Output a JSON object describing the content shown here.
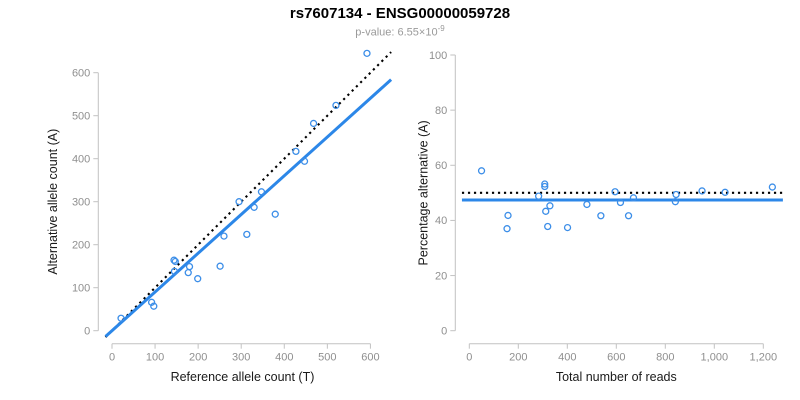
{
  "header": {
    "title": "rs7607134 - ENSG00000059728",
    "subtitle": {
      "text": "p-value: 6.55×10",
      "exponent": "-9"
    }
  },
  "colors": {
    "fit_line_blue": "#2c87e8",
    "point_blue": "#3c8ee8",
    "identity_black": "#000000",
    "axis_line": "#c2c2c2",
    "tick_label": "#8f8f8f",
    "axis_label": "#1a1a1a",
    "title": "#000000",
    "subtitle": "#9a9a9a",
    "background": "#ffffff"
  },
  "chart_data": [
    {
      "id": "allele-count-scatter",
      "type": "scatter",
      "xlabel": "Reference allele count (T)",
      "ylabel": "Alternative allele count (A)",
      "xlim": [
        0,
        600
      ],
      "ylim": [
        0,
        600
      ],
      "xticks": [
        0,
        100,
        200,
        300,
        400,
        500,
        600
      ],
      "xtick_labels": [
        "0",
        "100",
        "200",
        "300",
        "400",
        "500",
        "600"
      ],
      "yticks": [
        0,
        100,
        200,
        300,
        400,
        500,
        600
      ],
      "ytick_labels": [
        "0",
        "100",
        "200",
        "300",
        "400",
        "500",
        "600"
      ],
      "grid": false,
      "points": [
        [
          21,
          29
        ],
        [
          92,
          66
        ],
        [
          97,
          57
        ],
        [
          144,
          164
        ],
        [
          147,
          161
        ],
        [
          145,
          138
        ],
        [
          177,
          135
        ],
        [
          180,
          149
        ],
        [
          199,
          121
        ],
        [
          251,
          150
        ],
        [
          260,
          220
        ],
        [
          313,
          224
        ],
        [
          295,
          300
        ],
        [
          330,
          287
        ],
        [
          347,
          323
        ],
        [
          379,
          271
        ],
        [
          427,
          417
        ],
        [
          447,
          394
        ],
        [
          468,
          482
        ],
        [
          520,
          524
        ],
        [
          592,
          645
        ]
      ],
      "lines": [
        {
          "name": "identity-line",
          "kind": "abline",
          "slope": 1,
          "intercept": 0,
          "style": "dotted",
          "color_key": "identity_black"
        },
        {
          "name": "fit-line",
          "kind": "abline",
          "slope": 0.901,
          "intercept": 0,
          "style": "solid",
          "color_key": "fit_line_blue"
        }
      ]
    },
    {
      "id": "percentage-scatter",
      "type": "scatter",
      "xlabel": "Total number of reads",
      "ylabel": "Percentage alternative (A)",
      "xlim": [
        0,
        1200
      ],
      "ylim": [
        0,
        100
      ],
      "xticks": [
        0,
        200,
        400,
        600,
        800,
        1000,
        1200
      ],
      "xtick_labels": [
        "0",
        "200",
        "400",
        "600",
        "800",
        "1,000",
        "1,200"
      ],
      "yticks": [
        0,
        20,
        40,
        60,
        80,
        100
      ],
      "ytick_labels": [
        "0",
        "20",
        "40",
        "60",
        "80",
        "100"
      ],
      "grid": false,
      "points": [
        [
          50,
          58.0
        ],
        [
          158,
          41.8
        ],
        [
          154,
          37.0
        ],
        [
          308,
          53.2
        ],
        [
          308,
          52.3
        ],
        [
          283,
          48.8
        ],
        [
          312,
          43.3
        ],
        [
          329,
          45.3
        ],
        [
          320,
          37.8
        ],
        [
          401,
          37.4
        ],
        [
          480,
          45.8
        ],
        [
          537,
          41.7
        ],
        [
          595,
          50.4
        ],
        [
          617,
          46.5
        ],
        [
          670,
          48.2
        ],
        [
          650,
          41.7
        ],
        [
          844,
          49.4
        ],
        [
          841,
          46.8
        ],
        [
          950,
          50.7
        ],
        [
          1044,
          50.2
        ],
        [
          1237,
          52.1
        ]
      ],
      "lines": [
        {
          "name": "expected-50pct-line",
          "kind": "hline",
          "y": 50,
          "style": "dotted",
          "color_key": "identity_black"
        },
        {
          "name": "observed-pct-line",
          "kind": "hline",
          "y": 47.4,
          "style": "solid",
          "color_key": "fit_line_blue"
        }
      ]
    }
  ]
}
